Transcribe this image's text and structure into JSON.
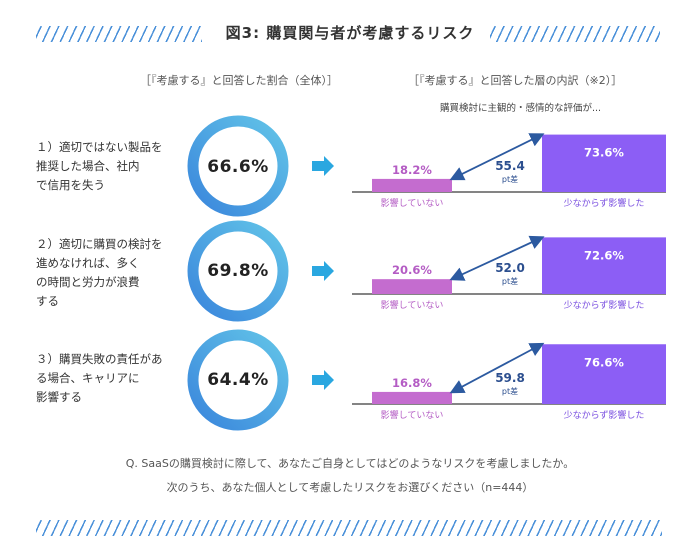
{
  "title": "図3: 購買関与者が考慮するリスク",
  "subheads": {
    "left": "［『考慮する』と回答した割合（全体）］",
    "right": "［『考慮する』と回答した層の内訳（※2）］"
  },
  "note": "購買検討に主観的・感情的な評価が...",
  "footer": {
    "line1": "Q. SaaSの購買検討に際して、あなたご自身としてはどのようなリスクを考慮しましたか。",
    "line2": "次のうち、あなた個人として考慮したリスクをお選びください（n=444）"
  },
  "colors": {
    "donut_dark": "#3a86dc",
    "donut_light": "#62c4e8",
    "small_bar": "#c46ccf",
    "big_bar": "#8c5ef5",
    "arrow": "#2c5aa0",
    "mid_arrow": "#2aa7e0"
  },
  "chart_data": {
    "type": "bar",
    "categories": [
      "影響していない",
      "少なからず影響した"
    ],
    "rows": [
      {
        "label": "１）適切ではない製品を\n推奨した場合、社内\nで信用を失う",
        "overall": "66.6%",
        "overall_value": 66.6,
        "small": "18.2%",
        "small_value": 18.2,
        "big": "73.6%",
        "big_value": 73.6,
        "diff": "55.4",
        "diff_unit": "pt差",
        "small_label": "影響していない",
        "big_label": "少なからず影響した"
      },
      {
        "label": "２）適切に購買の検討を\n進めなければ、多く\nの時間と労力が浪費\nする",
        "overall": "69.8%",
        "overall_value": 69.8,
        "small": "20.6%",
        "small_value": 20.6,
        "big": "72.6%",
        "big_value": 72.6,
        "diff": "52.0",
        "diff_unit": "pt差",
        "small_label": "影響していない",
        "big_label": "少なからず影響した"
      },
      {
        "label": "３）購買失敗の責任があ\nる場合、キャリアに\n影響する",
        "overall": "64.4%",
        "overall_value": 64.4,
        "small": "16.8%",
        "small_value": 16.8,
        "big": "76.6%",
        "big_value": 76.6,
        "diff": "59.8",
        "diff_unit": "pt差",
        "small_label": "影響していない",
        "big_label": "少なからず影響した"
      }
    ]
  }
}
